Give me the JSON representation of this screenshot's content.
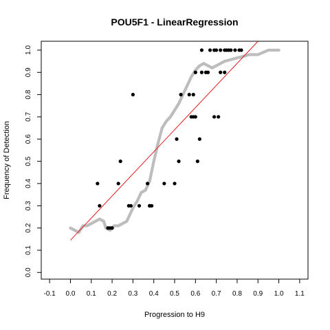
{
  "chart_data": {
    "type": "scatter",
    "title": "POU5F1 - LinearRegression",
    "xlabel": "Progression to H9",
    "ylabel": "Frequency of Detection",
    "xlim": [
      -0.14,
      1.14
    ],
    "ylim": [
      -0.03,
      1.04
    ],
    "x_ticks": [
      "-0.1",
      "0.0",
      "0.1",
      "0.2",
      "0.3",
      "0.4",
      "0.5",
      "0.6",
      "0.7",
      "0.8",
      "0.9",
      "1.0",
      "1.1"
    ],
    "y_ticks": [
      "0.0",
      "0.1",
      "0.2",
      "0.3",
      "0.4",
      "0.5",
      "0.6",
      "0.7",
      "0.8",
      "0.9",
      "1.0"
    ],
    "grid": false,
    "colors": {
      "points": "#000000",
      "smooth": "#bdbdbd",
      "fit": "#e31a1c"
    },
    "series": [
      {
        "kind": "points",
        "x": [
          0.13,
          0.14,
          0.18,
          0.19,
          0.2,
          0.23,
          0.24,
          0.28,
          0.29,
          0.3,
          0.33,
          0.37,
          0.38,
          0.38,
          0.39,
          0.45,
          0.5,
          0.51,
          0.52,
          0.53,
          0.57,
          0.58,
          0.59,
          0.59,
          0.6,
          0.6,
          0.61,
          0.62,
          0.63,
          0.63,
          0.65,
          0.66,
          0.67,
          0.69,
          0.69,
          0.7,
          0.71,
          0.72,
          0.72,
          0.74,
          0.74,
          0.75,
          0.76,
          0.77,
          0.79,
          0.81,
          0.82
        ],
        "y": [
          0.4,
          0.3,
          0.2,
          0.2,
          0.2,
          0.4,
          0.5,
          0.3,
          0.3,
          0.8,
          0.3,
          0.4,
          0.3,
          0.3,
          0.3,
          0.4,
          0.4,
          0.6,
          0.5,
          0.8,
          0.8,
          0.7,
          0.7,
          0.8,
          0.7,
          0.9,
          0.5,
          0.6,
          0.9,
          1.0,
          0.9,
          0.9,
          1.0,
          0.7,
          1.0,
          1.0,
          0.7,
          1.0,
          0.9,
          0.9,
          1.0,
          1.0,
          1.0,
          1.0,
          1.0,
          1.0,
          1.0
        ]
      },
      {
        "kind": "smooth",
        "x": [
          0.0,
          0.02,
          0.04,
          0.06,
          0.08,
          0.1,
          0.12,
          0.14,
          0.16,
          0.17,
          0.19,
          0.21,
          0.23,
          0.25,
          0.27,
          0.28,
          0.3,
          0.32,
          0.34,
          0.36,
          0.38,
          0.4,
          0.42,
          0.44,
          0.46,
          0.48,
          0.5,
          0.52,
          0.54,
          0.56,
          0.58,
          0.6,
          0.62,
          0.64,
          0.66,
          0.68,
          0.7,
          0.74,
          0.78,
          0.82,
          0.86,
          0.9,
          0.95,
          1.0
        ],
        "y": [
          0.2,
          0.19,
          0.18,
          0.21,
          0.21,
          0.22,
          0.23,
          0.24,
          0.23,
          0.2,
          0.19,
          0.21,
          0.21,
          0.22,
          0.23,
          0.25,
          0.29,
          0.32,
          0.36,
          0.37,
          0.41,
          0.5,
          0.58,
          0.65,
          0.68,
          0.7,
          0.73,
          0.76,
          0.8,
          0.84,
          0.88,
          0.91,
          0.93,
          0.94,
          0.93,
          0.92,
          0.93,
          0.95,
          0.96,
          0.97,
          0.98,
          0.98,
          1.0,
          1.0
        ]
      },
      {
        "kind": "fit",
        "x": [
          0.0,
          0.9
        ],
        "y": [
          0.145,
          1.04
        ]
      }
    ]
  }
}
